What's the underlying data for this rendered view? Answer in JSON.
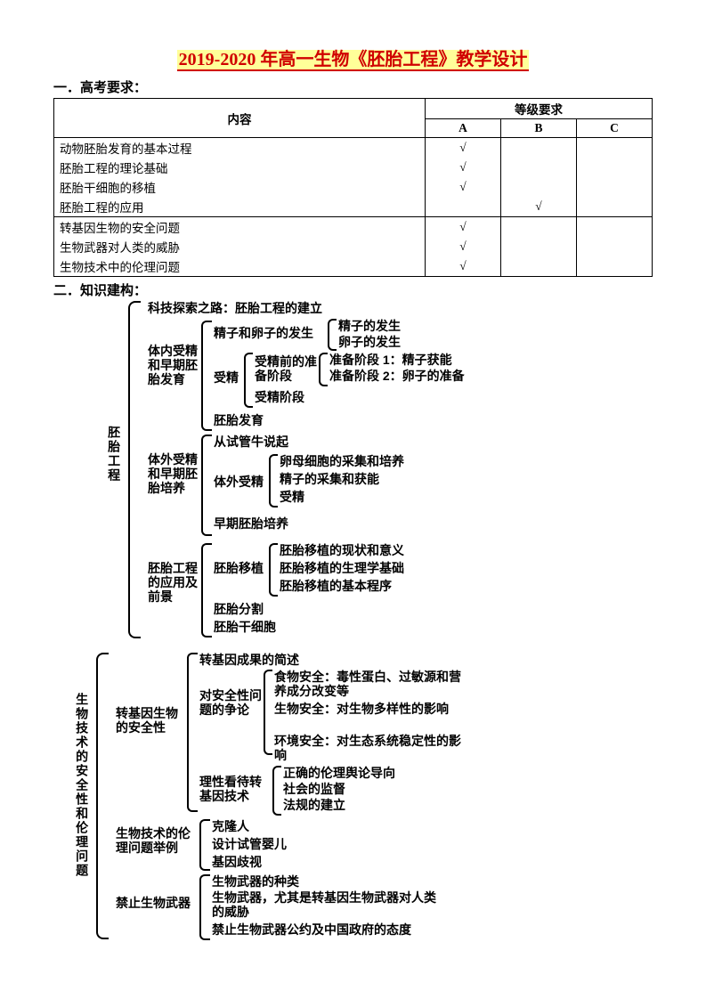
{
  "title": "2019-2020 年高一生物《胚胎工程》教学设计",
  "section1": "一．高考要求：",
  "section2": "二．知识建构：",
  "table": {
    "header_content": "内容",
    "header_level": "等级要求",
    "col_a": "A",
    "col_b": "B",
    "col_c": "C",
    "rows": [
      {
        "label": "动物胚胎发育的基本过程",
        "a": "√",
        "b": "",
        "c": ""
      },
      {
        "label": "胚胎工程的理论基础",
        "a": "√",
        "b": "",
        "c": ""
      },
      {
        "label": "胚胎干细胞的移植",
        "a": "√",
        "b": "",
        "c": ""
      },
      {
        "label": "胚胎工程的应用",
        "a": "",
        "b": "√",
        "c": ""
      },
      {
        "label": "转基因生物的安全问题",
        "a": "√",
        "b": "",
        "c": ""
      },
      {
        "label": "生物武器对人类的威胁",
        "a": "√",
        "b": "",
        "c": ""
      },
      {
        "label": "生物技术中的伦理问题",
        "a": "√",
        "b": "",
        "c": ""
      }
    ]
  },
  "d": {
    "root1": "胚胎工程",
    "n1": "科技探索之路：胚胎工程的建立",
    "n2": "体内受精和早期胚胎发育",
    "n2a": "精子和卵子的发生",
    "n2a1": "精子的发生",
    "n2a2": "卵子的发生",
    "n2b": "受精",
    "n2b1": "受精前的准备阶段",
    "n2b1a": "准备阶段 1：精子获能",
    "n2b1b": "准备阶段 2：卵子的准备",
    "n2b2": "受精阶段",
    "n2c": "胚胎发育",
    "n3": "体外受精和早期胚胎培养",
    "n3a": "从试管牛说起",
    "n3b": "体外受精",
    "n3b1": "卵母细胞的采集和培养",
    "n3b2": "精子的采集和获能",
    "n3b3": "受精",
    "n3c": "早期胚胎培养",
    "n4": "胚胎工程的应用及前景",
    "n4a": "胚胎移植",
    "n4a1": "胚胎移植的现状和意义",
    "n4a2": "胚胎移植的生理学基础",
    "n4a3": "胚胎移植的基本程序",
    "n4b": "胚胎分割",
    "n4c": "胚胎干细胞",
    "root2": "生物技术的安全性和伦理问题",
    "m1": "转基因生物的安全性",
    "m1a": "转基因成果的简述",
    "m1b": "对安全性问题的争论",
    "m1b1": "食物安全：毒性蛋白、过敏源和营养成分改变等",
    "m1b2": "生物安全：对生物多样性的影响",
    "m1b3": "环境安全：对生态系统稳定性的影响",
    "m1c": "理性看待转基因技术",
    "m1c1": "正确的伦理舆论导向",
    "m1c2": "社会的监督",
    "m1c3": "法规的建立",
    "m2": "生物技术的伦理问题举例",
    "m2a": "克隆人",
    "m2b": "设计试管婴儿",
    "m2c": "基因歧视",
    "m3": "禁止生物武器",
    "m3a": "生物武器的种类",
    "m3b": "生物武器，尤其是转基因生物武器对人类的威胁",
    "m3c": "禁止生物武器公约及中国政府的态度"
  }
}
